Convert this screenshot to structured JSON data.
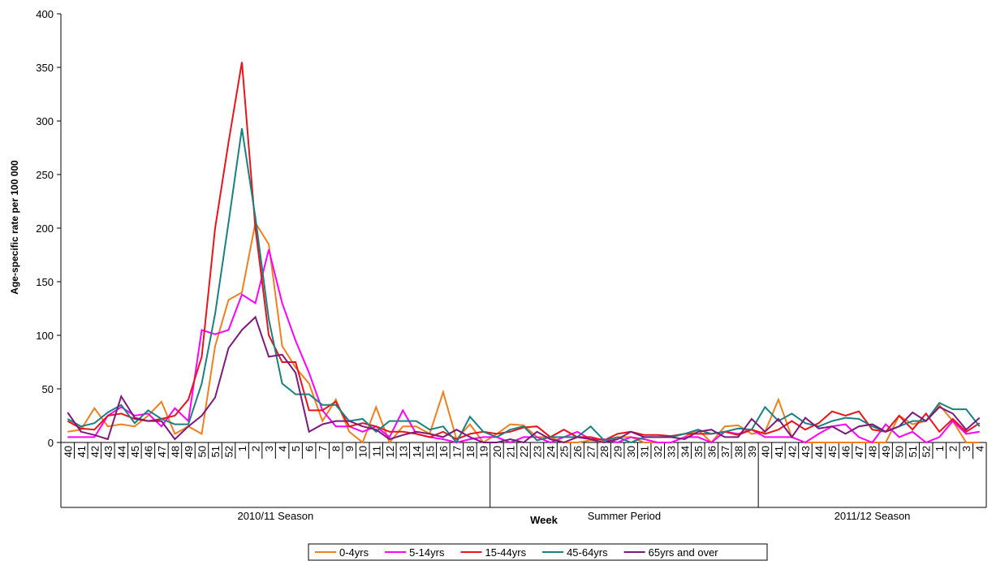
{
  "chart_data": {
    "type": "line",
    "y_label": "Age-specific rate per 100 000",
    "x_label": "Week",
    "categories": [
      "40",
      "41",
      "42",
      "43",
      "44",
      "45",
      "46",
      "47",
      "48",
      "49",
      "50",
      "51",
      "52",
      "1",
      "2",
      "3",
      "4",
      "5",
      "6",
      "7",
      "8",
      "9",
      "10",
      "11",
      "12",
      "13",
      "14",
      "15",
      "16",
      "17",
      "18",
      "19",
      "20",
      "21",
      "22",
      "23",
      "24",
      "25",
      "26",
      "27",
      "28",
      "29",
      "30",
      "31",
      "32",
      "33",
      "34",
      "35",
      "36",
      "37",
      "38",
      "39",
      "40",
      "41",
      "42",
      "43",
      "44",
      "45",
      "46",
      "47",
      "48",
      "49",
      "50",
      "51",
      "52",
      "1",
      "2",
      "3",
      "4"
    ],
    "x_groups": [
      {
        "label": "2010/11 Season",
        "span": 32
      },
      {
        "label": "Summer Period",
        "span": 20
      },
      {
        "label": "2011/12 Season",
        "span": 17
      }
    ],
    "ylim": [
      0,
      400
    ],
    "yticks": [
      0,
      50,
      100,
      150,
      200,
      250,
      300,
      350,
      400
    ],
    "legend": "bottom",
    "series": [
      {
        "name": "0-4yrs",
        "color": "#f07f1f",
        "values": [
          10,
          12,
          32,
          15,
          17,
          15,
          25,
          38,
          8,
          15,
          8,
          90,
          133,
          140,
          205,
          185,
          90,
          70,
          55,
          20,
          40,
          10,
          0,
          33,
          0,
          15,
          15,
          8,
          47,
          3,
          17,
          0,
          8,
          17,
          16,
          5,
          5,
          0,
          0,
          2,
          0,
          5,
          5,
          0,
          0,
          0,
          5,
          12,
          0,
          15,
          16,
          8,
          10,
          40,
          5,
          0,
          0,
          0,
          0,
          0,
          0,
          0,
          25,
          17,
          20,
          35,
          20,
          0,
          0
        ]
      },
      {
        "name": "5-14yrs",
        "color": "#ff00ff",
        "values": [
          5,
          5,
          5,
          25,
          33,
          25,
          27,
          15,
          32,
          20,
          105,
          101,
          105,
          138,
          130,
          180,
          130,
          95,
          65,
          30,
          15,
          15,
          10,
          15,
          5,
          30,
          8,
          5,
          3,
          0,
          3,
          5,
          5,
          0,
          5,
          5,
          0,
          5,
          10,
          3,
          3,
          0,
          5,
          3,
          0,
          0,
          5,
          5,
          0,
          10,
          8,
          12,
          5,
          5,
          5,
          0,
          8,
          15,
          17,
          5,
          0,
          17,
          5,
          10,
          0,
          5,
          20,
          8,
          10
        ]
      },
      {
        "name": "15-44yrs",
        "color": "#e8141c",
        "values": [
          20,
          13,
          12,
          25,
          27,
          22,
          20,
          22,
          25,
          40,
          80,
          200,
          280,
          355,
          200,
          100,
          75,
          75,
          30,
          30,
          38,
          15,
          18,
          15,
          10,
          10,
          8,
          5,
          10,
          3,
          8,
          10,
          8,
          10,
          14,
          15,
          5,
          12,
          5,
          5,
          2,
          8,
          10,
          7,
          7,
          6,
          8,
          8,
          8,
          10,
          7,
          12,
          8,
          12,
          20,
          12,
          18,
          29,
          25,
          29,
          12,
          10,
          25,
          12,
          27,
          10,
          22,
          10,
          18
        ]
      },
      {
        "name": "45-64yrs",
        "color": "#1a8080",
        "values": [
          22,
          15,
          18,
          28,
          35,
          18,
          30,
          22,
          17,
          17,
          55,
          120,
          205,
          293,
          210,
          115,
          55,
          45,
          45,
          35,
          35,
          20,
          22,
          10,
          20,
          20,
          20,
          12,
          15,
          0,
          24,
          10,
          5,
          12,
          15,
          2,
          5,
          5,
          5,
          15,
          2,
          5,
          0,
          5,
          5,
          5,
          8,
          12,
          8,
          10,
          13,
          12,
          33,
          20,
          27,
          18,
          15,
          20,
          23,
          22,
          15,
          10,
          15,
          20,
          20,
          37,
          31,
          31,
          15
        ]
      },
      {
        "name": "65yrs and over",
        "color": "#7b1a7b",
        "values": [
          28,
          10,
          7,
          3,
          43,
          23,
          20,
          20,
          3,
          15,
          25,
          42,
          88,
          105,
          117,
          80,
          82,
          65,
          10,
          17,
          20,
          20,
          15,
          12,
          3,
          7,
          10,
          8,
          5,
          12,
          5,
          0,
          0,
          3,
          0,
          10,
          3,
          0,
          5,
          3,
          0,
          3,
          10,
          5,
          5,
          5,
          3,
          10,
          12,
          5,
          5,
          22,
          10,
          22,
          5,
          23,
          13,
          15,
          8,
          15,
          17,
          10,
          15,
          28,
          20,
          33,
          27,
          12,
          23
        ]
      }
    ]
  }
}
